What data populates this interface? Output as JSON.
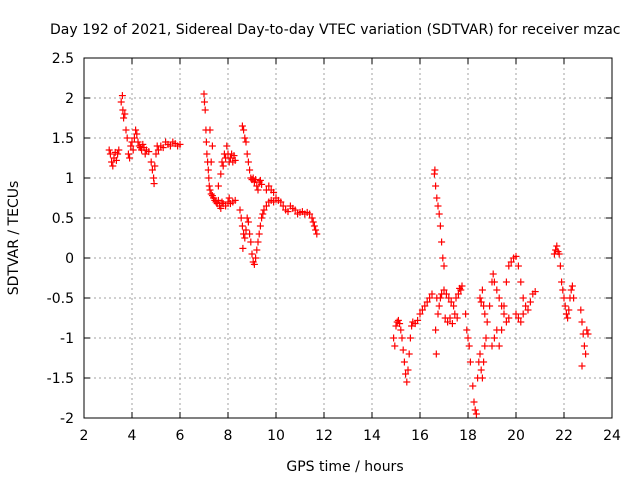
{
  "chart_data": {
    "type": "scatter",
    "title": "Day 192 of 2021, Sidereal Day-to-day VTEC variation (SDTVAR) for receiver mzac",
    "xlabel": "GPS time / hours",
    "ylabel": "SDTVAR / TECUs",
    "xlim": [
      2,
      24
    ],
    "ylim": [
      -2,
      2.5
    ],
    "x_ticks": [
      2,
      4,
      6,
      8,
      10,
      12,
      14,
      16,
      18,
      20,
      22,
      24
    ],
    "y_ticks": [
      2.5,
      2,
      1.5,
      1,
      0.5,
      0,
      -0.5,
      -1,
      -1.5,
      -2
    ],
    "x_tick_labels": [
      "2",
      "4",
      "6",
      "8",
      "10",
      "12",
      "14",
      "16",
      "18",
      "20",
      "22",
      "24"
    ],
    "y_tick_labels": [
      "2.5",
      "2",
      "1.5",
      "1",
      "0.5",
      "0",
      "-0.5",
      "-1",
      "-1.5",
      "-2"
    ],
    "grid": true,
    "marker": "+",
    "color": "#ff0000",
    "series": [
      {
        "name": "SDTVAR",
        "points": [
          [
            3.05,
            1.35
          ],
          [
            3.1,
            1.3
          ],
          [
            3.15,
            1.2
          ],
          [
            3.2,
            1.15
          ],
          [
            3.25,
            1.25
          ],
          [
            3.3,
            1.32
          ],
          [
            3.35,
            1.22
          ],
          [
            3.4,
            1.3
          ],
          [
            3.45,
            1.35
          ],
          [
            3.55,
            1.95
          ],
          [
            3.6,
            2.03
          ],
          [
            3.62,
            1.85
          ],
          [
            3.65,
            1.75
          ],
          [
            3.7,
            1.8
          ],
          [
            3.75,
            1.6
          ],
          [
            3.8,
            1.5
          ],
          [
            3.85,
            1.3
          ],
          [
            3.9,
            1.25
          ],
          [
            3.95,
            1.4
          ],
          [
            4.0,
            1.45
          ],
          [
            4.05,
            1.35
          ],
          [
            4.1,
            1.5
          ],
          [
            4.15,
            1.6
          ],
          [
            4.2,
            1.55
          ],
          [
            4.25,
            1.45
          ],
          [
            4.3,
            1.4
          ],
          [
            4.35,
            1.38
          ],
          [
            4.4,
            1.35
          ],
          [
            4.45,
            1.42
          ],
          [
            4.5,
            1.38
          ],
          [
            4.55,
            1.3
          ],
          [
            4.6,
            1.35
          ],
          [
            4.7,
            1.33
          ],
          [
            4.8,
            1.2
          ],
          [
            4.85,
            1.1
          ],
          [
            4.9,
            1.0
          ],
          [
            4.92,
            0.93
          ],
          [
            4.95,
            1.15
          ],
          [
            5.0,
            1.3
          ],
          [
            5.05,
            1.4
          ],
          [
            5.1,
            1.35
          ],
          [
            5.2,
            1.4
          ],
          [
            5.3,
            1.38
          ],
          [
            5.4,
            1.45
          ],
          [
            5.5,
            1.42
          ],
          [
            5.6,
            1.4
          ],
          [
            5.7,
            1.45
          ],
          [
            5.8,
            1.43
          ],
          [
            5.9,
            1.4
          ],
          [
            6.0,
            1.42
          ],
          [
            7.0,
            2.05
          ],
          [
            7.02,
            1.95
          ],
          [
            7.05,
            1.85
          ],
          [
            7.08,
            1.6
          ],
          [
            7.1,
            1.45
          ],
          [
            7.12,
            1.3
          ],
          [
            7.15,
            1.2
          ],
          [
            7.18,
            1.1
          ],
          [
            7.2,
            1.0
          ],
          [
            7.22,
            0.9
          ],
          [
            7.25,
            0.85
          ],
          [
            7.3,
            0.8
          ],
          [
            7.35,
            0.78
          ],
          [
            7.4,
            0.75
          ],
          [
            7.45,
            0.72
          ],
          [
            7.5,
            0.7
          ],
          [
            7.55,
            0.68
          ],
          [
            7.6,
            0.72
          ],
          [
            7.65,
            0.65
          ],
          [
            7.7,
            0.62
          ],
          [
            7.75,
            0.7
          ],
          [
            7.8,
            0.68
          ],
          [
            7.9,
            0.65
          ],
          [
            8.0,
            0.7
          ],
          [
            8.05,
            0.75
          ],
          [
            8.1,
            0.68
          ],
          [
            8.2,
            0.7
          ],
          [
            8.3,
            0.72
          ],
          [
            7.6,
            0.9
          ],
          [
            7.7,
            1.05
          ],
          [
            7.75,
            1.2
          ],
          [
            7.8,
            1.15
          ],
          [
            7.85,
            1.3
          ],
          [
            7.9,
            1.25
          ],
          [
            7.95,
            1.4
          ],
          [
            8.0,
            1.3
          ],
          [
            8.05,
            1.2
          ],
          [
            8.1,
            1.25
          ],
          [
            8.15,
            1.3
          ],
          [
            8.2,
            1.2
          ],
          [
            8.25,
            1.28
          ],
          [
            8.3,
            1.22
          ],
          [
            7.3,
            1.2
          ],
          [
            7.35,
            1.4
          ],
          [
            7.25,
            1.6
          ],
          [
            8.6,
            1.65
          ],
          [
            8.65,
            1.6
          ],
          [
            8.7,
            1.5
          ],
          [
            8.75,
            1.45
          ],
          [
            8.8,
            1.3
          ],
          [
            8.85,
            1.2
          ],
          [
            8.9,
            1.1
          ],
          [
            8.95,
            1.0
          ],
          [
            9.0,
            0.98
          ],
          [
            9.05,
            1.0
          ],
          [
            9.1,
            0.95
          ],
          [
            9.15,
            0.98
          ],
          [
            9.2,
            0.9
          ],
          [
            9.25,
            0.85
          ],
          [
            9.3,
            0.95
          ],
          [
            9.35,
            0.97
          ],
          [
            9.4,
            0.92
          ],
          [
            8.5,
            0.6
          ],
          [
            8.55,
            0.5
          ],
          [
            8.6,
            0.4
          ],
          [
            8.65,
            0.3
          ],
          [
            8.62,
            0.12
          ],
          [
            8.7,
            0.25
          ],
          [
            8.75,
            0.35
          ],
          [
            8.8,
            0.5
          ],
          [
            8.85,
            0.45
          ],
          [
            8.9,
            0.3
          ],
          [
            8.95,
            0.2
          ],
          [
            9.0,
            0.05
          ],
          [
            9.05,
            -0.05
          ],
          [
            9.1,
            -0.08
          ],
          [
            9.15,
            0.0
          ],
          [
            9.2,
            0.1
          ],
          [
            9.25,
            0.2
          ],
          [
            9.3,
            0.3
          ],
          [
            9.35,
            0.4
          ],
          [
            9.4,
            0.5
          ],
          [
            9.45,
            0.55
          ],
          [
            9.5,
            0.6
          ],
          [
            9.6,
            0.65
          ],
          [
            9.7,
            0.7
          ],
          [
            9.8,
            0.72
          ],
          [
            9.9,
            0.7
          ],
          [
            9.6,
            0.85
          ],
          [
            9.7,
            0.9
          ],
          [
            9.8,
            0.85
          ],
          [
            9.9,
            0.82
          ],
          [
            10.0,
            0.75
          ],
          [
            10.1,
            0.72
          ],
          [
            10.2,
            0.7
          ],
          [
            10.3,
            0.65
          ],
          [
            10.4,
            0.6
          ],
          [
            10.5,
            0.58
          ],
          [
            10.6,
            0.65
          ],
          [
            10.7,
            0.62
          ],
          [
            10.8,
            0.6
          ],
          [
            10.9,
            0.55
          ],
          [
            11.0,
            0.57
          ],
          [
            11.1,
            0.58
          ],
          [
            11.2,
            0.55
          ],
          [
            11.3,
            0.57
          ],
          [
            11.4,
            0.55
          ],
          [
            11.5,
            0.5
          ],
          [
            11.55,
            0.45
          ],
          [
            11.6,
            0.4
          ],
          [
            11.65,
            0.35
          ],
          [
            11.7,
            0.3
          ],
          [
            14.9,
            -1.0
          ],
          [
            14.95,
            -1.1
          ],
          [
            15.0,
            -0.85
          ],
          [
            15.05,
            -0.8
          ],
          [
            15.1,
            -0.78
          ],
          [
            15.15,
            -0.82
          ],
          [
            15.2,
            -0.9
          ],
          [
            15.25,
            -1.0
          ],
          [
            15.3,
            -1.15
          ],
          [
            15.35,
            -1.3
          ],
          [
            15.4,
            -1.45
          ],
          [
            15.45,
            -1.55
          ],
          [
            15.5,
            -1.4
          ],
          [
            15.55,
            -1.2
          ],
          [
            15.6,
            -1.0
          ],
          [
            15.65,
            -0.85
          ],
          [
            15.7,
            -0.8
          ],
          [
            15.8,
            -0.82
          ],
          [
            15.9,
            -0.78
          ],
          [
            16.0,
            -0.7
          ],
          [
            16.1,
            -0.65
          ],
          [
            16.2,
            -0.6
          ],
          [
            16.3,
            -0.55
          ],
          [
            16.4,
            -0.5
          ],
          [
            16.5,
            -0.45
          ],
          [
            16.6,
            1.05
          ],
          [
            16.62,
            1.1
          ],
          [
            16.65,
            0.9
          ],
          [
            16.7,
            0.75
          ],
          [
            16.75,
            0.65
          ],
          [
            16.8,
            0.55
          ],
          [
            16.85,
            0.4
          ],
          [
            16.9,
            0.2
          ],
          [
            16.95,
            0.0
          ],
          [
            17.0,
            -0.1
          ],
          [
            16.7,
            -0.5
          ],
          [
            16.65,
            -0.9
          ],
          [
            16.68,
            -1.2
          ],
          [
            16.75,
            -0.7
          ],
          [
            16.8,
            -0.6
          ],
          [
            16.85,
            -0.5
          ],
          [
            16.9,
            -0.45
          ],
          [
            17.0,
            -0.4
          ],
          [
            17.1,
            -0.45
          ],
          [
            17.2,
            -0.5
          ],
          [
            17.3,
            -0.55
          ],
          [
            17.4,
            -0.6
          ],
          [
            17.5,
            -0.5
          ],
          [
            17.6,
            -0.45
          ],
          [
            17.7,
            -0.4
          ],
          [
            17.05,
            -0.75
          ],
          [
            17.15,
            -0.8
          ],
          [
            17.25,
            -0.75
          ],
          [
            17.35,
            -0.82
          ],
          [
            17.45,
            -0.7
          ],
          [
            17.55,
            -0.75
          ],
          [
            17.65,
            -0.38
          ],
          [
            17.75,
            -0.35
          ],
          [
            17.9,
            -0.7
          ],
          [
            17.95,
            -0.9
          ],
          [
            18.0,
            -1.0
          ],
          [
            18.05,
            -1.1
          ],
          [
            18.1,
            -1.3
          ],
          [
            18.2,
            -1.6
          ],
          [
            18.25,
            -1.8
          ],
          [
            18.3,
            -1.9
          ],
          [
            18.35,
            -1.95
          ],
          [
            18.4,
            -1.5
          ],
          [
            18.45,
            -1.3
          ],
          [
            18.5,
            -1.2
          ],
          [
            18.55,
            -1.4
          ],
          [
            18.6,
            -1.5
          ],
          [
            18.65,
            -1.3
          ],
          [
            18.7,
            -1.1
          ],
          [
            18.75,
            -1.0
          ],
          [
            18.5,
            -0.5
          ],
          [
            18.55,
            -0.55
          ],
          [
            18.6,
            -0.4
          ],
          [
            18.65,
            -0.6
          ],
          [
            18.7,
            -0.7
          ],
          [
            18.8,
            -0.8
          ],
          [
            18.9,
            -0.6
          ],
          [
            19.0,
            -0.3
          ],
          [
            19.05,
            -0.2
          ],
          [
            19.1,
            -0.3
          ],
          [
            19.2,
            -0.4
          ],
          [
            19.3,
            -0.5
          ],
          [
            19.4,
            -0.6
          ],
          [
            19.5,
            -0.7
          ],
          [
            19.6,
            -0.8
          ],
          [
            19.7,
            -0.75
          ],
          [
            19.0,
            -1.1
          ],
          [
            19.1,
            -1.0
          ],
          [
            19.2,
            -0.9
          ],
          [
            19.3,
            -1.1
          ],
          [
            19.4,
            -0.9
          ],
          [
            19.5,
            -0.6
          ],
          [
            19.6,
            -0.3
          ],
          [
            19.7,
            -0.1
          ],
          [
            19.8,
            -0.05
          ],
          [
            19.9,
            0.0
          ],
          [
            20.0,
            0.02
          ],
          [
            20.1,
            -0.1
          ],
          [
            20.2,
            -0.3
          ],
          [
            20.3,
            -0.5
          ],
          [
            20.4,
            -0.6
          ],
          [
            20.5,
            -0.65
          ],
          [
            20.6,
            -0.55
          ],
          [
            20.7,
            -0.45
          ],
          [
            20.8,
            -0.42
          ],
          [
            20.0,
            -0.7
          ],
          [
            20.1,
            -0.75
          ],
          [
            20.2,
            -0.8
          ],
          [
            20.3,
            -0.7
          ],
          [
            21.6,
            0.05
          ],
          [
            21.65,
            0.1
          ],
          [
            21.7,
            0.15
          ],
          [
            21.75,
            0.08
          ],
          [
            21.8,
            0.05
          ],
          [
            21.85,
            -0.1
          ],
          [
            21.9,
            -0.3
          ],
          [
            21.95,
            -0.4
          ],
          [
            22.0,
            -0.5
          ],
          [
            22.05,
            -0.6
          ],
          [
            22.1,
            -0.7
          ],
          [
            22.15,
            -0.75
          ],
          [
            22.2,
            -0.65
          ],
          [
            22.25,
            -0.5
          ],
          [
            22.3,
            -0.4
          ],
          [
            22.35,
            -0.35
          ],
          [
            22.4,
            -0.5
          ],
          [
            22.7,
            -0.65
          ],
          [
            22.75,
            -0.8
          ],
          [
            22.8,
            -0.95
          ],
          [
            22.85,
            -1.1
          ],
          [
            22.9,
            -1.2
          ],
          [
            22.75,
            -1.35
          ],
          [
            22.95,
            -0.9
          ],
          [
            23.0,
            -0.95
          ]
        ]
      }
    ]
  }
}
